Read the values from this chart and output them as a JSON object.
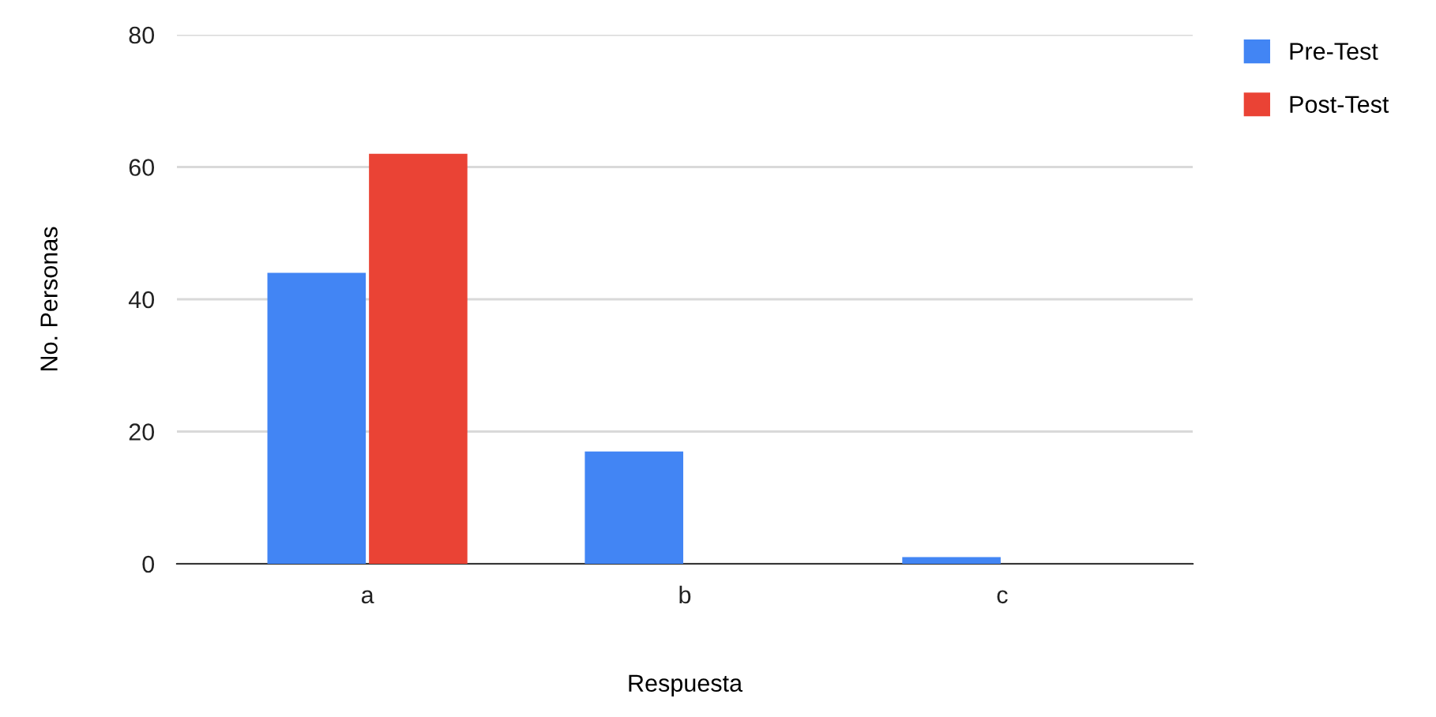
{
  "chart_data": {
    "type": "bar",
    "xlabel": "Respuesta",
    "ylabel": "No. Personas",
    "categories": [
      "a",
      "b",
      "c"
    ],
    "series": [
      {
        "name": "Pre-Test",
        "color": "#4285f4",
        "values": [
          44,
          17,
          1
        ]
      },
      {
        "name": "Post-Test",
        "color": "#ea4335",
        "values": [
          62,
          0,
          0
        ]
      }
    ],
    "ylim": [
      0,
      80
    ],
    "yticks": [
      0,
      20,
      40,
      60,
      80
    ],
    "grid": "y",
    "legend": "top right"
  }
}
